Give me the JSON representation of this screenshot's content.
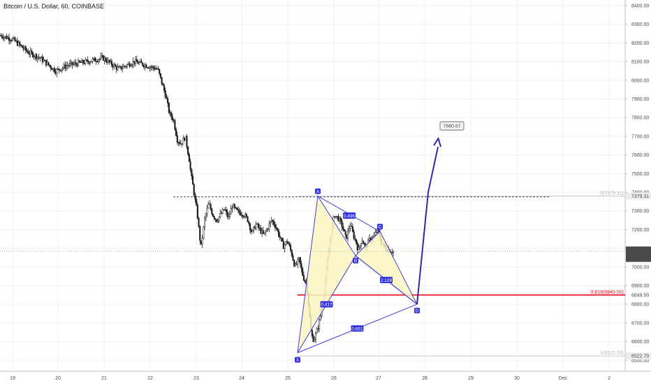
{
  "header": {
    "title": "Bitcoin / U.S. Dollar, 60, COINBASE"
  },
  "colors": {
    "candle": "#1b1b1b",
    "pattern_line": "#3f3fd6",
    "pattern_fill": "#fbf4c2",
    "label_bg": "#3333dd",
    "target_arrow": "#3a23a8",
    "fib_red": "#e8111c",
    "fib_gray": "#c8c8c8",
    "price_tag": "#4a4a4a",
    "grid": "#eef0f3"
  },
  "chart_data": {
    "type": "candlestick",
    "title": "Bitcoin / U.S. Dollar, 60, COINBASE",
    "ylim": [
      6460,
      8420
    ],
    "y_ticks": [
      "8400.00",
      "8300.00",
      "8200.00",
      "8100.00",
      "8000.00",
      "7900.00",
      "7800.00",
      "7700.00",
      "7600.00",
      "7500.00",
      "7400.00",
      "7300.00",
      "7200.00",
      "7100.00",
      "7000.00",
      "6900.00",
      "6800.00",
      "6700.00",
      "6600.00",
      "6500.00"
    ],
    "x_ticks": [
      "19",
      "20",
      "21",
      "22",
      "23",
      "24",
      "25",
      "26",
      "27",
      "28",
      "29",
      "30",
      "Dec",
      "2"
    ],
    "price_path": [
      [
        0,
        8240
      ],
      [
        3,
        8220
      ],
      [
        7,
        8150
      ],
      [
        10,
        8120
      ],
      [
        14,
        8050
      ],
      [
        17,
        8080
      ],
      [
        22,
        8100
      ],
      [
        26,
        8120
      ],
      [
        30,
        8060
      ],
      [
        34,
        8100
      ],
      [
        37,
        8080
      ],
      [
        40,
        8060
      ],
      [
        42,
        7920
      ],
      [
        43,
        7820
      ],
      [
        44,
        7790
      ],
      [
        45,
        7680
      ],
      [
        46,
        7660
      ],
      [
        47,
        7700
      ],
      [
        47.5,
        7640
      ],
      [
        48,
        7580
      ],
      [
        48.5,
        7490
      ],
      [
        49,
        7430
      ],
      [
        49.5,
        7360
      ],
      [
        50,
        7300
      ],
      [
        50.5,
        7200
      ],
      [
        51,
        7100
      ],
      [
        52,
        7260
      ],
      [
        53,
        7340
      ],
      [
        54,
        7280
      ],
      [
        55,
        7250
      ],
      [
        57,
        7310
      ],
      [
        58,
        7260
      ],
      [
        59,
        7330
      ],
      [
        60,
        7300
      ],
      [
        62,
        7280
      ],
      [
        63,
        7250
      ],
      [
        64,
        7180
      ],
      [
        65,
        7230
      ],
      [
        67,
        7170
      ],
      [
        69,
        7250
      ],
      [
        70,
        7220
      ],
      [
        72,
        7110
      ],
      [
        73,
        7140
      ],
      [
        74,
        7080
      ],
      [
        75,
        7000
      ],
      [
        76,
        7040
      ],
      [
        77,
        6950
      ],
      [
        78,
        6900
      ],
      [
        78.6,
        6760
      ],
      [
        79,
        6660
      ],
      [
        79.5,
        6610
      ],
      [
        80,
        6620
      ],
      [
        81,
        6690
      ],
      [
        82,
        6800
      ],
      [
        83,
        6980
      ],
      [
        84,
        7160
      ],
      [
        85,
        7280
      ],
      [
        86,
        7260
      ],
      [
        87,
        7220
      ],
      [
        88,
        7150
      ],
      [
        89,
        7230
      ],
      [
        90,
        7160
      ],
      [
        90.8,
        7120
      ],
      [
        91,
        7080
      ],
      [
        92,
        7150
      ],
      [
        93,
        7100
      ],
      [
        94,
        7150
      ],
      [
        95,
        7160
      ],
      [
        96,
        7200
      ],
      [
        97,
        7130
      ],
      [
        98,
        7100
      ],
      [
        99,
        7090
      ],
      [
        100,
        7083
      ]
    ],
    "pattern": {
      "points": [
        {
          "label": "X",
          "price": 6540
        },
        {
          "label": "A",
          "price": 7379
        },
        {
          "label": "B",
          "price": 7060
        },
        {
          "label": "C",
          "price": 7190
        },
        {
          "label": "D",
          "price": 6800
        }
      ],
      "ratios": [
        {
          "id": "xb",
          "label": "0.417"
        },
        {
          "id": "ac",
          "label": "0.496"
        },
        {
          "id": "bd",
          "label": "2.129"
        },
        {
          "id": "xd",
          "label": "0.651"
        }
      ]
    },
    "target": {
      "price": 7680.67,
      "label": "7680.67"
    },
    "fib_levels": [
      {
        "ratio": "0",
        "price": 7379.31,
        "label": "0(7379.31)"
      },
      {
        "ratio": "0.618",
        "price": 6849.5,
        "label": "0.618(6849.50)"
      },
      {
        "ratio": "1",
        "price": 6522.7,
        "label": "1(6522.70)"
      }
    ],
    "dashed_resistance": 7375,
    "last_price": {
      "label": "7083.14",
      "countdown": "21:12"
    }
  }
}
